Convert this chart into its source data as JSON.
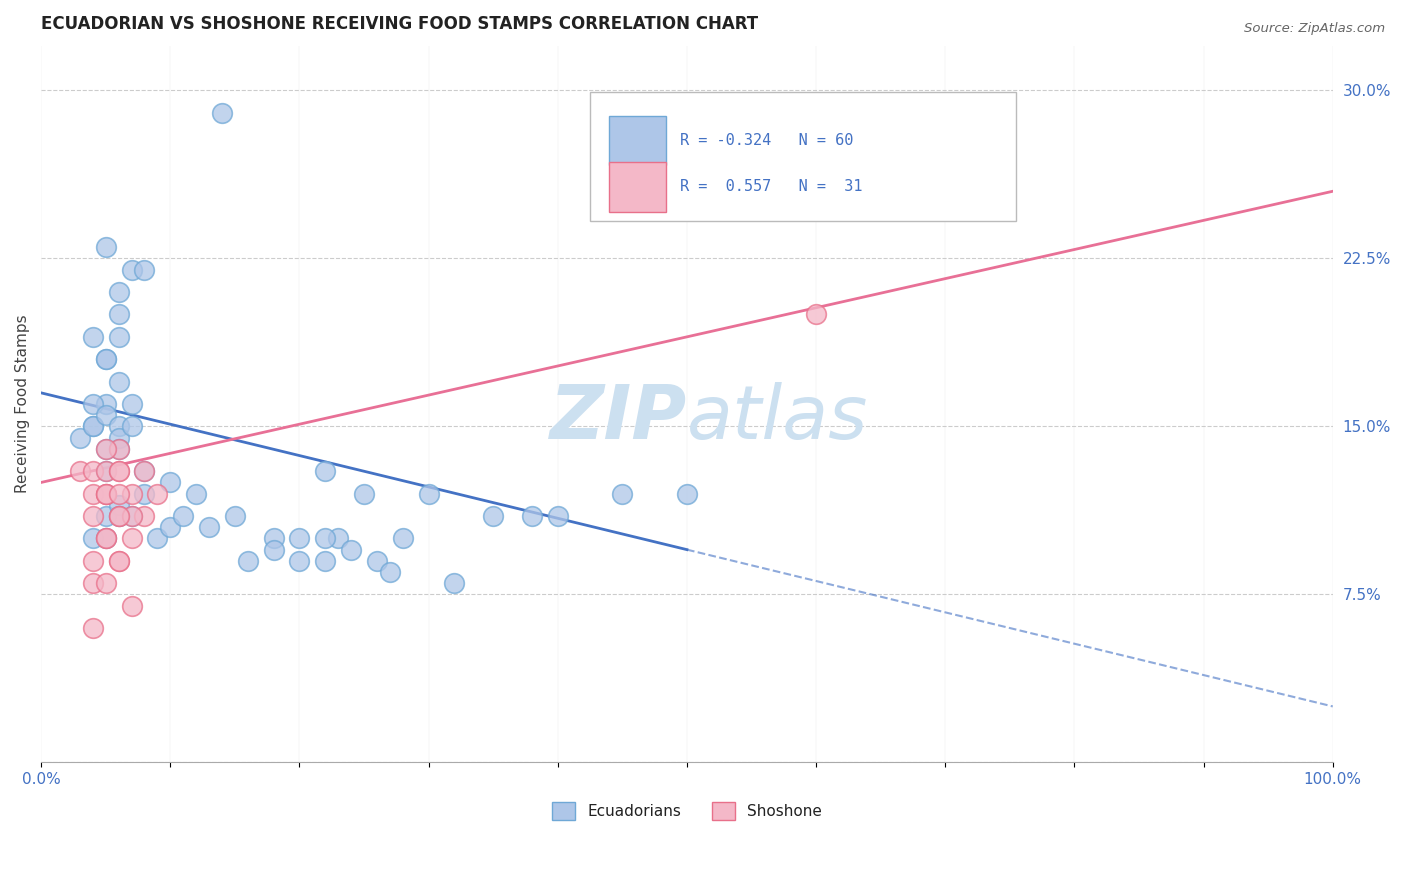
{
  "title": "ECUADORIAN VS SHOSHONE RECEIVING FOOD STAMPS CORRELATION CHART",
  "source": "Source: ZipAtlas.com",
  "ylabel": "Receiving Food Stamps",
  "xlim": [
    0,
    100
  ],
  "ylim": [
    0,
    32
  ],
  "background_color": "#ffffff",
  "grid_color": "#cccccc",
  "ecuadorian_color": "#aec6e8",
  "ecuadorian_edge_color": "#6fa8d6",
  "shoshone_color": "#f4b8c8",
  "shoshone_edge_color": "#e8708a",
  "ecuadorian_line_color": "#4472c4",
  "shoshone_line_color": "#e87096",
  "watermark_color": "#cce0f0",
  "ytick_color": "#4472c4",
  "xtick_color": "#4472c4",
  "ecuadorians_x": [
    14,
    5,
    4,
    5,
    6,
    5,
    4,
    3,
    6,
    7,
    8,
    6,
    6,
    5,
    4,
    4,
    5,
    6,
    7,
    5,
    6,
    7,
    5,
    6,
    8,
    10,
    12,
    22,
    25,
    30,
    35,
    38,
    40,
    5,
    6,
    4,
    5,
    6,
    7,
    8,
    9,
    10,
    11,
    13,
    15,
    18,
    20,
    23,
    26,
    28,
    22,
    24,
    20,
    18,
    16,
    22,
    27,
    32,
    45,
    50
  ],
  "ecuadorians_y": [
    29,
    23,
    19,
    18,
    17,
    16,
    15,
    14.5,
    21,
    22,
    22,
    20,
    19,
    18,
    16,
    15,
    15.5,
    15,
    16,
    14,
    14.5,
    15,
    13,
    14,
    13,
    12.5,
    12,
    13,
    12,
    12,
    11,
    11,
    11,
    11,
    11.5,
    10,
    10,
    11,
    11,
    12,
    10,
    10.5,
    11,
    10.5,
    11,
    10,
    9,
    10,
    9,
    10,
    10,
    9.5,
    10,
    9.5,
    9,
    9,
    8.5,
    8,
    12,
    12
  ],
  "shoshone_x": [
    3,
    4,
    5,
    6,
    5,
    6,
    4,
    5,
    6,
    4,
    5,
    5,
    6,
    7,
    8,
    9,
    6,
    7,
    8,
    5,
    6,
    7,
    4,
    5,
    6,
    60,
    4,
    5,
    6,
    7,
    4
  ],
  "shoshone_y": [
    13,
    13,
    13,
    14,
    14,
    13,
    12,
    12,
    13,
    11,
    12,
    12,
    11,
    12,
    11,
    12,
    12,
    11,
    13,
    10,
    11,
    10,
    9,
    10,
    9,
    20,
    8,
    8,
    9,
    7,
    6
  ],
  "ecu_line_x0": 0,
  "ecu_line_y0": 16.5,
  "ecu_line_x1": 50,
  "ecu_line_y1": 9.5,
  "ecu_dash_x0": 50,
  "ecu_dash_y0": 9.5,
  "ecu_dash_x1": 100,
  "ecu_dash_y1": 2.5,
  "sho_line_x0": 0,
  "sho_line_y0": 12.5,
  "sho_line_x1": 100,
  "sho_line_y1": 25.5
}
